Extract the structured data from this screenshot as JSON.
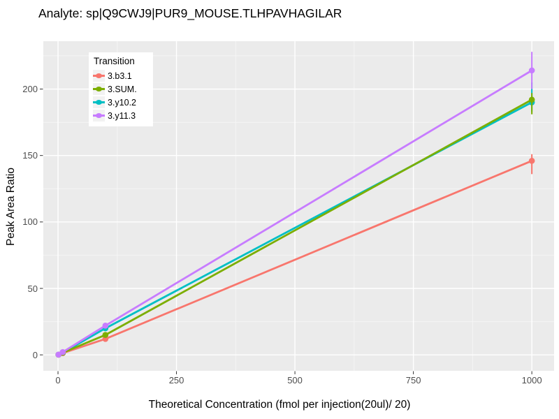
{
  "title": "Analyte: sp|Q9CWJ9|PUR9_MOUSE.TLHPAVHAGILAR",
  "panel": {
    "background": "#EBEBEB",
    "grid_major_color": "#FFFFFF",
    "grid_minor_color": "#F5F5F5",
    "tick_color": "#333333",
    "tick_label_color": "#4D4D4D"
  },
  "chart_data": {
    "type": "line",
    "title": "Analyte: sp|Q9CWJ9|PUR9_MOUSE.TLHPAVHAGILAR",
    "xlabel": "Theoretical Concentration (fmol per injection(20ul)/ 20)",
    "ylabel": "Peak Area Ratio",
    "legend_title": "Transition",
    "legend_position": "top-left-inside",
    "grid": true,
    "x_ticks": [
      0,
      250,
      500,
      750,
      1000
    ],
    "y_ticks": [
      0,
      50,
      100,
      150,
      200
    ],
    "x_minor": [
      125,
      375,
      625,
      875
    ],
    "y_minor": [
      25,
      75,
      125,
      175,
      225
    ],
    "xlim": [
      -31,
      1047
    ],
    "ylim": [
      -12,
      236
    ],
    "x": [
      1,
      10,
      100,
      1000
    ],
    "series": [
      {
        "name": "3.b3.1",
        "color": "#F8766D",
        "values": [
          0.1,
          1.3,
          12,
          146
        ],
        "ymin": [
          0.1,
          1.3,
          11,
          136
        ],
        "ymax": [
          0.1,
          1.3,
          13.5,
          151
        ]
      },
      {
        "name": "3.SUM.",
        "color": "#7CAE00",
        "values": [
          0.15,
          1.6,
          15,
          192
        ],
        "ymin": [
          0.15,
          1.6,
          14.5,
          181
        ],
        "ymax": [
          0.15,
          1.6,
          15.5,
          197
        ]
      },
      {
        "name": "3.y10.2",
        "color": "#00BFC4",
        "values": [
          0.15,
          1.6,
          20,
          190
        ],
        "ymin": [
          0.15,
          1.6,
          19,
          183
        ],
        "ymax": [
          0.15,
          1.6,
          21,
          205
        ]
      },
      {
        "name": "3.y11.3",
        "color": "#C77CFF",
        "values": [
          0.2,
          2.1,
          22,
          214
        ],
        "ymin": [
          0.2,
          2.1,
          21,
          200
        ],
        "ymax": [
          0.2,
          2.1,
          23,
          228
        ]
      }
    ],
    "draw_order": [
      0,
      2,
      1,
      3
    ]
  }
}
